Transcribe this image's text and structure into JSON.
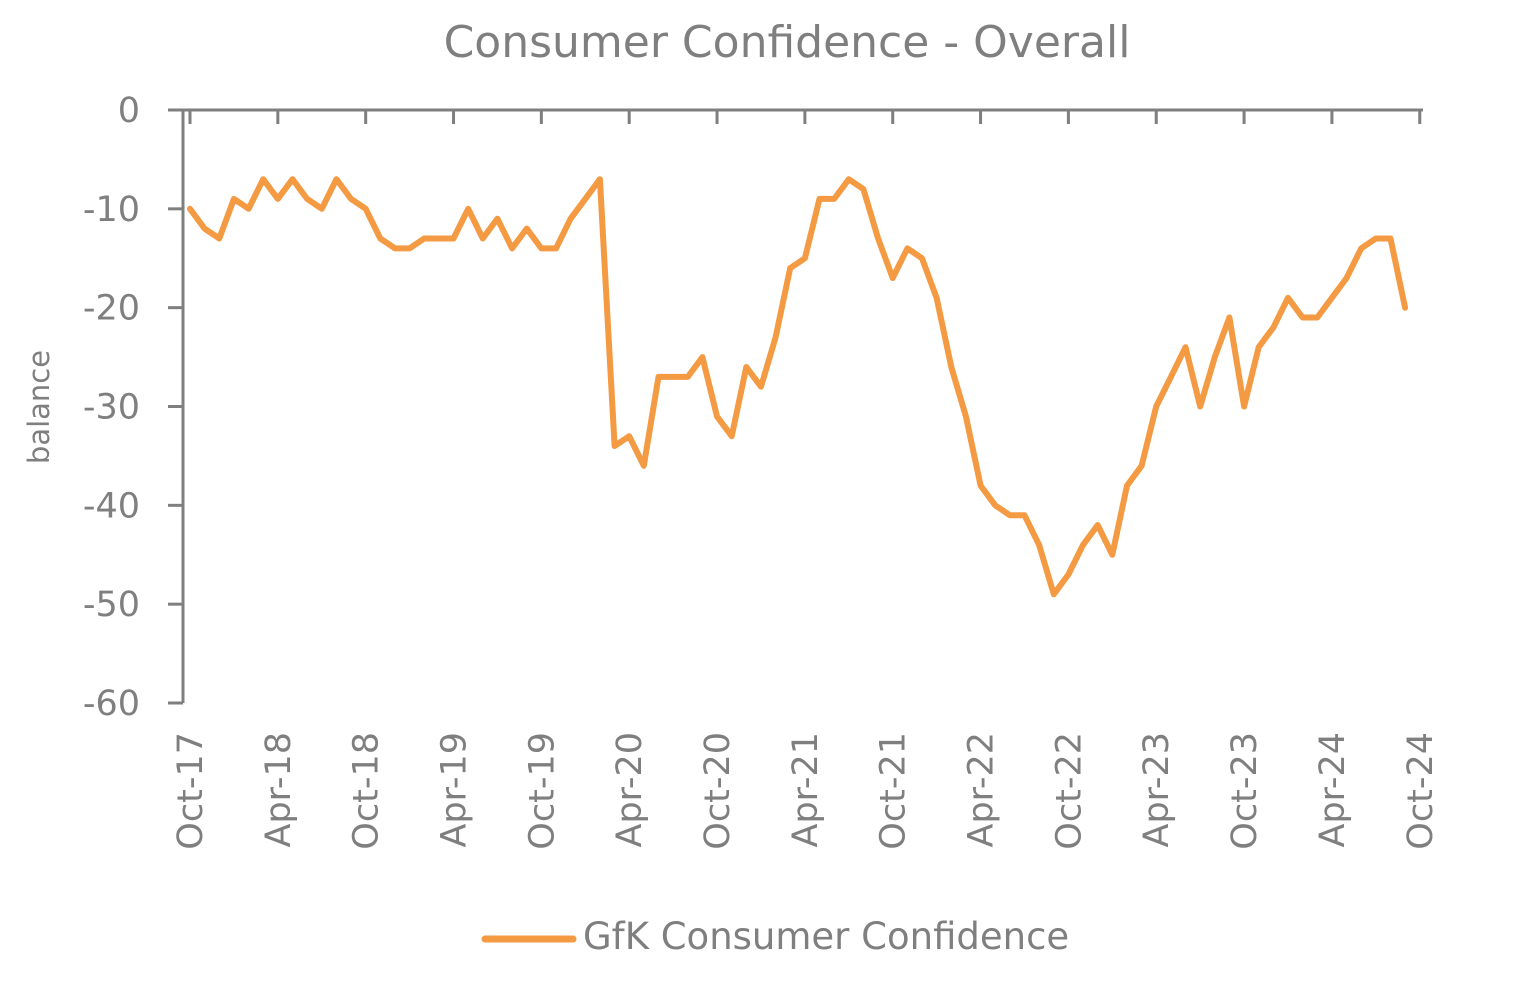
{
  "chart_data": {
    "type": "line",
    "title": "Consumer Confidence - Overall",
    "xlabel": "",
    "ylabel": "balance",
    "ylim": [
      -60,
      0
    ],
    "yticks": [
      0,
      -10,
      -20,
      -30,
      -40,
      -50,
      -60
    ],
    "x_tick_labels": [
      "Oct-17",
      "Apr-18",
      "Oct-18",
      "Apr-19",
      "Oct-19",
      "Apr-20",
      "Oct-20",
      "Apr-21",
      "Oct-21",
      "Apr-22",
      "Oct-22",
      "Apr-23",
      "Oct-23",
      "Apr-24",
      "Oct-24"
    ],
    "x_range": [
      "Oct-17",
      "Oct-24"
    ],
    "legend": "bottom",
    "grid": false,
    "series": [
      {
        "name": "GfK Consumer Confidence",
        "color": "#f39a43",
        "x": [
          "Oct-17",
          "Nov-17",
          "Dec-17",
          "Jan-18",
          "Feb-18",
          "Mar-18",
          "Apr-18",
          "May-18",
          "Jun-18",
          "Jul-18",
          "Aug-18",
          "Sep-18",
          "Oct-18",
          "Nov-18",
          "Dec-18",
          "Jan-19",
          "Feb-19",
          "Mar-19",
          "Apr-19",
          "May-19",
          "Jun-19",
          "Jul-19",
          "Aug-19",
          "Sep-19",
          "Oct-19",
          "Nov-19",
          "Dec-19",
          "Jan-20",
          "Feb-20",
          "Mar-20",
          "Apr-20",
          "May-20",
          "Jun-20",
          "Jul-20",
          "Aug-20",
          "Sep-20",
          "Oct-20",
          "Nov-20",
          "Dec-20",
          "Jan-21",
          "Feb-21",
          "Mar-21",
          "Apr-21",
          "May-21",
          "Jun-21",
          "Jul-21",
          "Aug-21",
          "Sep-21",
          "Oct-21",
          "Nov-21",
          "Dec-21",
          "Jan-22",
          "Feb-22",
          "Mar-22",
          "Apr-22",
          "May-22",
          "Jun-22",
          "Jul-22",
          "Aug-22",
          "Sep-22",
          "Oct-22",
          "Nov-22",
          "Dec-22",
          "Jan-23",
          "Feb-23",
          "Mar-23",
          "Apr-23",
          "May-23",
          "Jun-23",
          "Jul-23",
          "Aug-23",
          "Sep-23",
          "Oct-23",
          "Nov-23",
          "Dec-23",
          "Jan-24",
          "Feb-24",
          "Mar-24",
          "Apr-24",
          "May-24",
          "Jun-24",
          "Jul-24",
          "Aug-24",
          "Sep-24"
        ],
        "values": [
          -10,
          -12,
          -13,
          -9,
          -10,
          -7,
          -9,
          -7,
          -9,
          -10,
          -7,
          -9,
          -10,
          -13,
          -14,
          -14,
          -13,
          -13,
          -13,
          -10,
          -13,
          -11,
          -14,
          -12,
          -14,
          -14,
          -11,
          -9,
          -7,
          -34,
          -33,
          -36,
          -27,
          -27,
          -27,
          -25,
          -31,
          -33,
          -26,
          -28,
          -23,
          -16,
          -15,
          -9,
          -9,
          -7,
          -8,
          -13,
          -17,
          -14,
          -15,
          -19,
          -26,
          -31,
          -38,
          -40,
          -41,
          -41,
          -44,
          -49,
          -47,
          -44,
          -42,
          -45,
          -38,
          -36,
          -30,
          -27,
          -24,
          -30,
          -25,
          -21,
          -30,
          -24,
          -22,
          -19,
          -21,
          -21,
          -19,
          -17,
          -14,
          -13,
          -13,
          -20
        ]
      }
    ]
  }
}
